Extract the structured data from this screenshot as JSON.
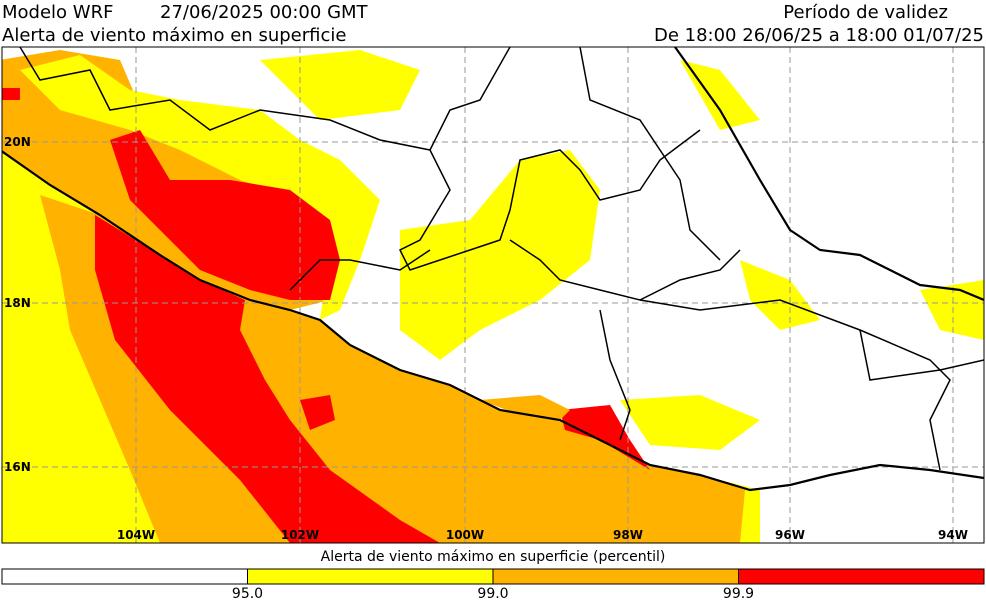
{
  "header": {
    "model": "Modelo WRF",
    "date": "27/06/2025 00:00 GMT",
    "subtitle": "Alerta de viento máximo en superficie",
    "validity_title": "Período de validez",
    "validity_range": "De 18:00 26/06/25 a 18:00 01/07/25"
  },
  "map": {
    "lon_labels": [
      "104W",
      "102W",
      "100W",
      "98W",
      "96W",
      "94W"
    ],
    "lat_labels": [
      "20N",
      "18N",
      "16N"
    ]
  },
  "colorbar": {
    "title": "Alerta de viento máximo en superficie (percentil)",
    "colors": [
      "#ffffff",
      "#ffff00",
      "#ffb300",
      "#ff0000"
    ],
    "bounds": [
      "95.0",
      "99.0",
      "99.9"
    ]
  }
}
